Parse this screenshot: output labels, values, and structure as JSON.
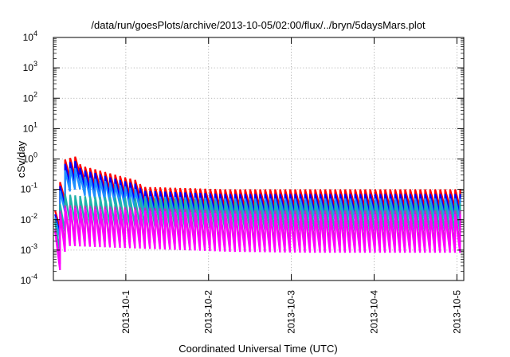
{
  "chart_data": {
    "type": "line",
    "title": "/data/run/goesPlots/archive/2013-10-05/02:00/flux/../bryn/5daysMars.plot",
    "xlabel": "Coordinated Universal Time (UTC)",
    "ylabel": "cSv/day",
    "yscale": "log",
    "ylim": [
      0.0001,
      10000
    ],
    "xlim": [
      "2013-09-30T03:00",
      "2013-10-05T02:00"
    ],
    "y_ticks": [
      {
        "base": "10",
        "exp": "4"
      },
      {
        "base": "10",
        "exp": "3"
      },
      {
        "base": "10",
        "exp": "2"
      },
      {
        "base": "10",
        "exp": "1"
      },
      {
        "base": "10",
        "exp": "0"
      },
      {
        "base": "10",
        "exp": "-1"
      },
      {
        "base": "10",
        "exp": "-2"
      },
      {
        "base": "10",
        "exp": "-3"
      },
      {
        "base": "10",
        "exp": "-4"
      }
    ],
    "x_ticks": [
      "2013-10-1",
      "2013-10-2",
      "2013-10-3",
      "2013-10-4",
      "2013-10-5"
    ],
    "grid": true,
    "legend": "none",
    "series": [
      {
        "color": "#ff0000",
        "peak_envelope": [
          [
            0.5,
            0.02
          ],
          [
            1.4,
            0.06
          ],
          [
            2.8,
            0.9
          ],
          [
            5.0,
            1.1
          ],
          [
            6.4,
            1.2
          ],
          [
            8.0,
            0.6
          ],
          [
            14.0,
            0.4
          ],
          [
            18.0,
            0.3
          ],
          [
            24.0,
            0.2
          ],
          [
            26.0,
            0.12
          ],
          [
            50.0,
            0.1
          ],
          [
            72.0,
            0.1
          ],
          [
            96.0,
            0.1
          ],
          [
            119.0,
            0.1
          ]
        ],
        "trough_ratio": 0.25
      },
      {
        "color": "#0000ff",
        "peak_envelope": [
          [
            0.5,
            0.015
          ],
          [
            1.4,
            0.045
          ],
          [
            2.8,
            0.65
          ],
          [
            5.0,
            0.8
          ],
          [
            6.4,
            0.85
          ],
          [
            8.0,
            0.45
          ],
          [
            14.0,
            0.3
          ],
          [
            18.0,
            0.22
          ],
          [
            24.0,
            0.15
          ],
          [
            26.0,
            0.09
          ],
          [
            50.0,
            0.07
          ],
          [
            72.0,
            0.07
          ],
          [
            96.0,
            0.07
          ],
          [
            119.0,
            0.07
          ]
        ],
        "trough_ratio": 0.22
      },
      {
        "color": "#1e90ff",
        "peak_envelope": [
          [
            0.5,
            0.012
          ],
          [
            1.4,
            0.035
          ],
          [
            2.8,
            0.4
          ],
          [
            5.0,
            0.5
          ],
          [
            6.4,
            0.5
          ],
          [
            8.0,
            0.28
          ],
          [
            14.0,
            0.2
          ],
          [
            18.0,
            0.15
          ],
          [
            24.0,
            0.1
          ],
          [
            26.0,
            0.06
          ],
          [
            50.0,
            0.05
          ],
          [
            72.0,
            0.05
          ],
          [
            96.0,
            0.05
          ],
          [
            119.0,
            0.05
          ]
        ],
        "trough_ratio": 0.2
      },
      {
        "color": "#20b2aa",
        "peak_envelope": [
          [
            0.5,
            0.008
          ],
          [
            1.4,
            0.02
          ],
          [
            2.8,
            0.07
          ],
          [
            8.0,
            0.06
          ],
          [
            26.0,
            0.05
          ],
          [
            50.0,
            0.04
          ],
          [
            72.0,
            0.035
          ],
          [
            96.0,
            0.035
          ],
          [
            119.0,
            0.035
          ]
        ],
        "trough_ratio": 0.12
      },
      {
        "color": "#bb33bb",
        "peak_envelope": [
          [
            0.5,
            0.005
          ],
          [
            1.4,
            0.015
          ],
          [
            2.8,
            0.03
          ],
          [
            26.0,
            0.025
          ],
          [
            50.0,
            0.02
          ],
          [
            72.0,
            0.02
          ],
          [
            96.0,
            0.02
          ],
          [
            119.0,
            0.02
          ]
        ],
        "trough_ratio": 0.07
      },
      {
        "color": "#ff00ff",
        "peak_envelope": [
          [
            0.5,
            0.004
          ],
          [
            1.4,
            0.012
          ],
          [
            2.8,
            0.025
          ],
          [
            26.0,
            0.02
          ],
          [
            50.0,
            0.016
          ],
          [
            72.0,
            0.015
          ],
          [
            96.0,
            0.015
          ],
          [
            119.0,
            0.015
          ]
        ],
        "trough_ratio": 0.055
      }
    ]
  }
}
